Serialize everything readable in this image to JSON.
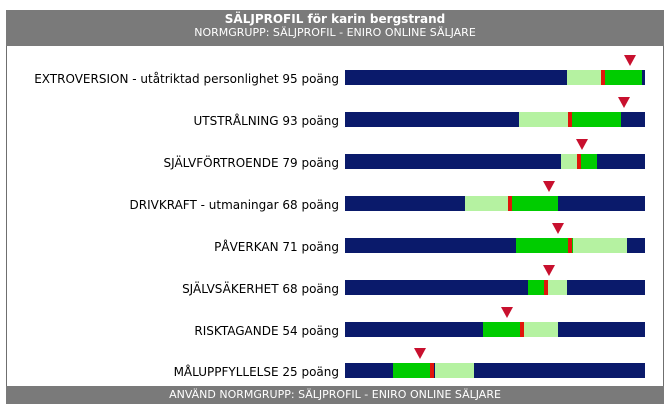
{
  "header": {
    "title": "SÄLJPROFIL för karin bergstrand",
    "subtitle": "NORMGRUPP: SÄLJPROFIL - ENIRO ONLINE SÄLJARE"
  },
  "footer": {
    "text": "ANVÄND NORMGRUPP: SÄLJPROFIL - ENIRO ONLINE SÄLJARE"
  },
  "colors": {
    "bar_background": "#0a1a6b",
    "range_light": "#b5f2a1",
    "range_green": "#00cc00",
    "marker": "#e0160c",
    "pointer": "#c8102e",
    "frame": "#7a7a7a"
  },
  "scales": [
    {
      "label": "EXTROVERSION - utåtriktad personlighet 95 poäng",
      "points": 95,
      "light": [
        0.74,
        0.86
      ],
      "green": [
        0.86,
        0.99
      ],
      "marker": 0.86,
      "pointer": 0.95
    },
    {
      "label": "UTSTRÅLNING 93 poäng",
      "points": 93,
      "light": [
        0.58,
        0.75
      ],
      "green": [
        0.75,
        0.92
      ],
      "marker": 0.75,
      "pointer": 0.93
    },
    {
      "label": "SJÄLVFÖRTROENDE 79 poäng",
      "points": 79,
      "light": [
        0.72,
        0.78
      ],
      "green": [
        0.78,
        0.84
      ],
      "marker": 0.78,
      "pointer": 0.79
    },
    {
      "label": "DRIVKRAFT - utmaningar 68 poäng",
      "points": 68,
      "light": [
        0.4,
        0.55
      ],
      "green": [
        0.55,
        0.71
      ],
      "marker": 0.55,
      "pointer": 0.68
    },
    {
      "label": "PÅVERKAN 71 poäng",
      "points": 71,
      "light": [
        0.76,
        0.94
      ],
      "green": [
        0.57,
        0.76
      ],
      "marker": 0.75,
      "pointer": 0.71
    },
    {
      "label": "SJÄLVSÄKERHET 68 poäng",
      "points": 68,
      "light": [
        0.67,
        0.74
      ],
      "green": [
        0.61,
        0.67
      ],
      "marker": 0.67,
      "pointer": 0.68
    },
    {
      "label": "RISKTAGANDE 54 poäng",
      "points": 54,
      "light": [
        0.59,
        0.71
      ],
      "green": [
        0.46,
        0.59
      ],
      "marker": 0.59,
      "pointer": 0.54
    },
    {
      "label": "MÅLUPPFYLLELSE 25 poäng",
      "points": 25,
      "light": [
        0.3,
        0.43
      ],
      "green": [
        0.16,
        0.29
      ],
      "marker": 0.29,
      "pointer": 0.25
    }
  ]
}
